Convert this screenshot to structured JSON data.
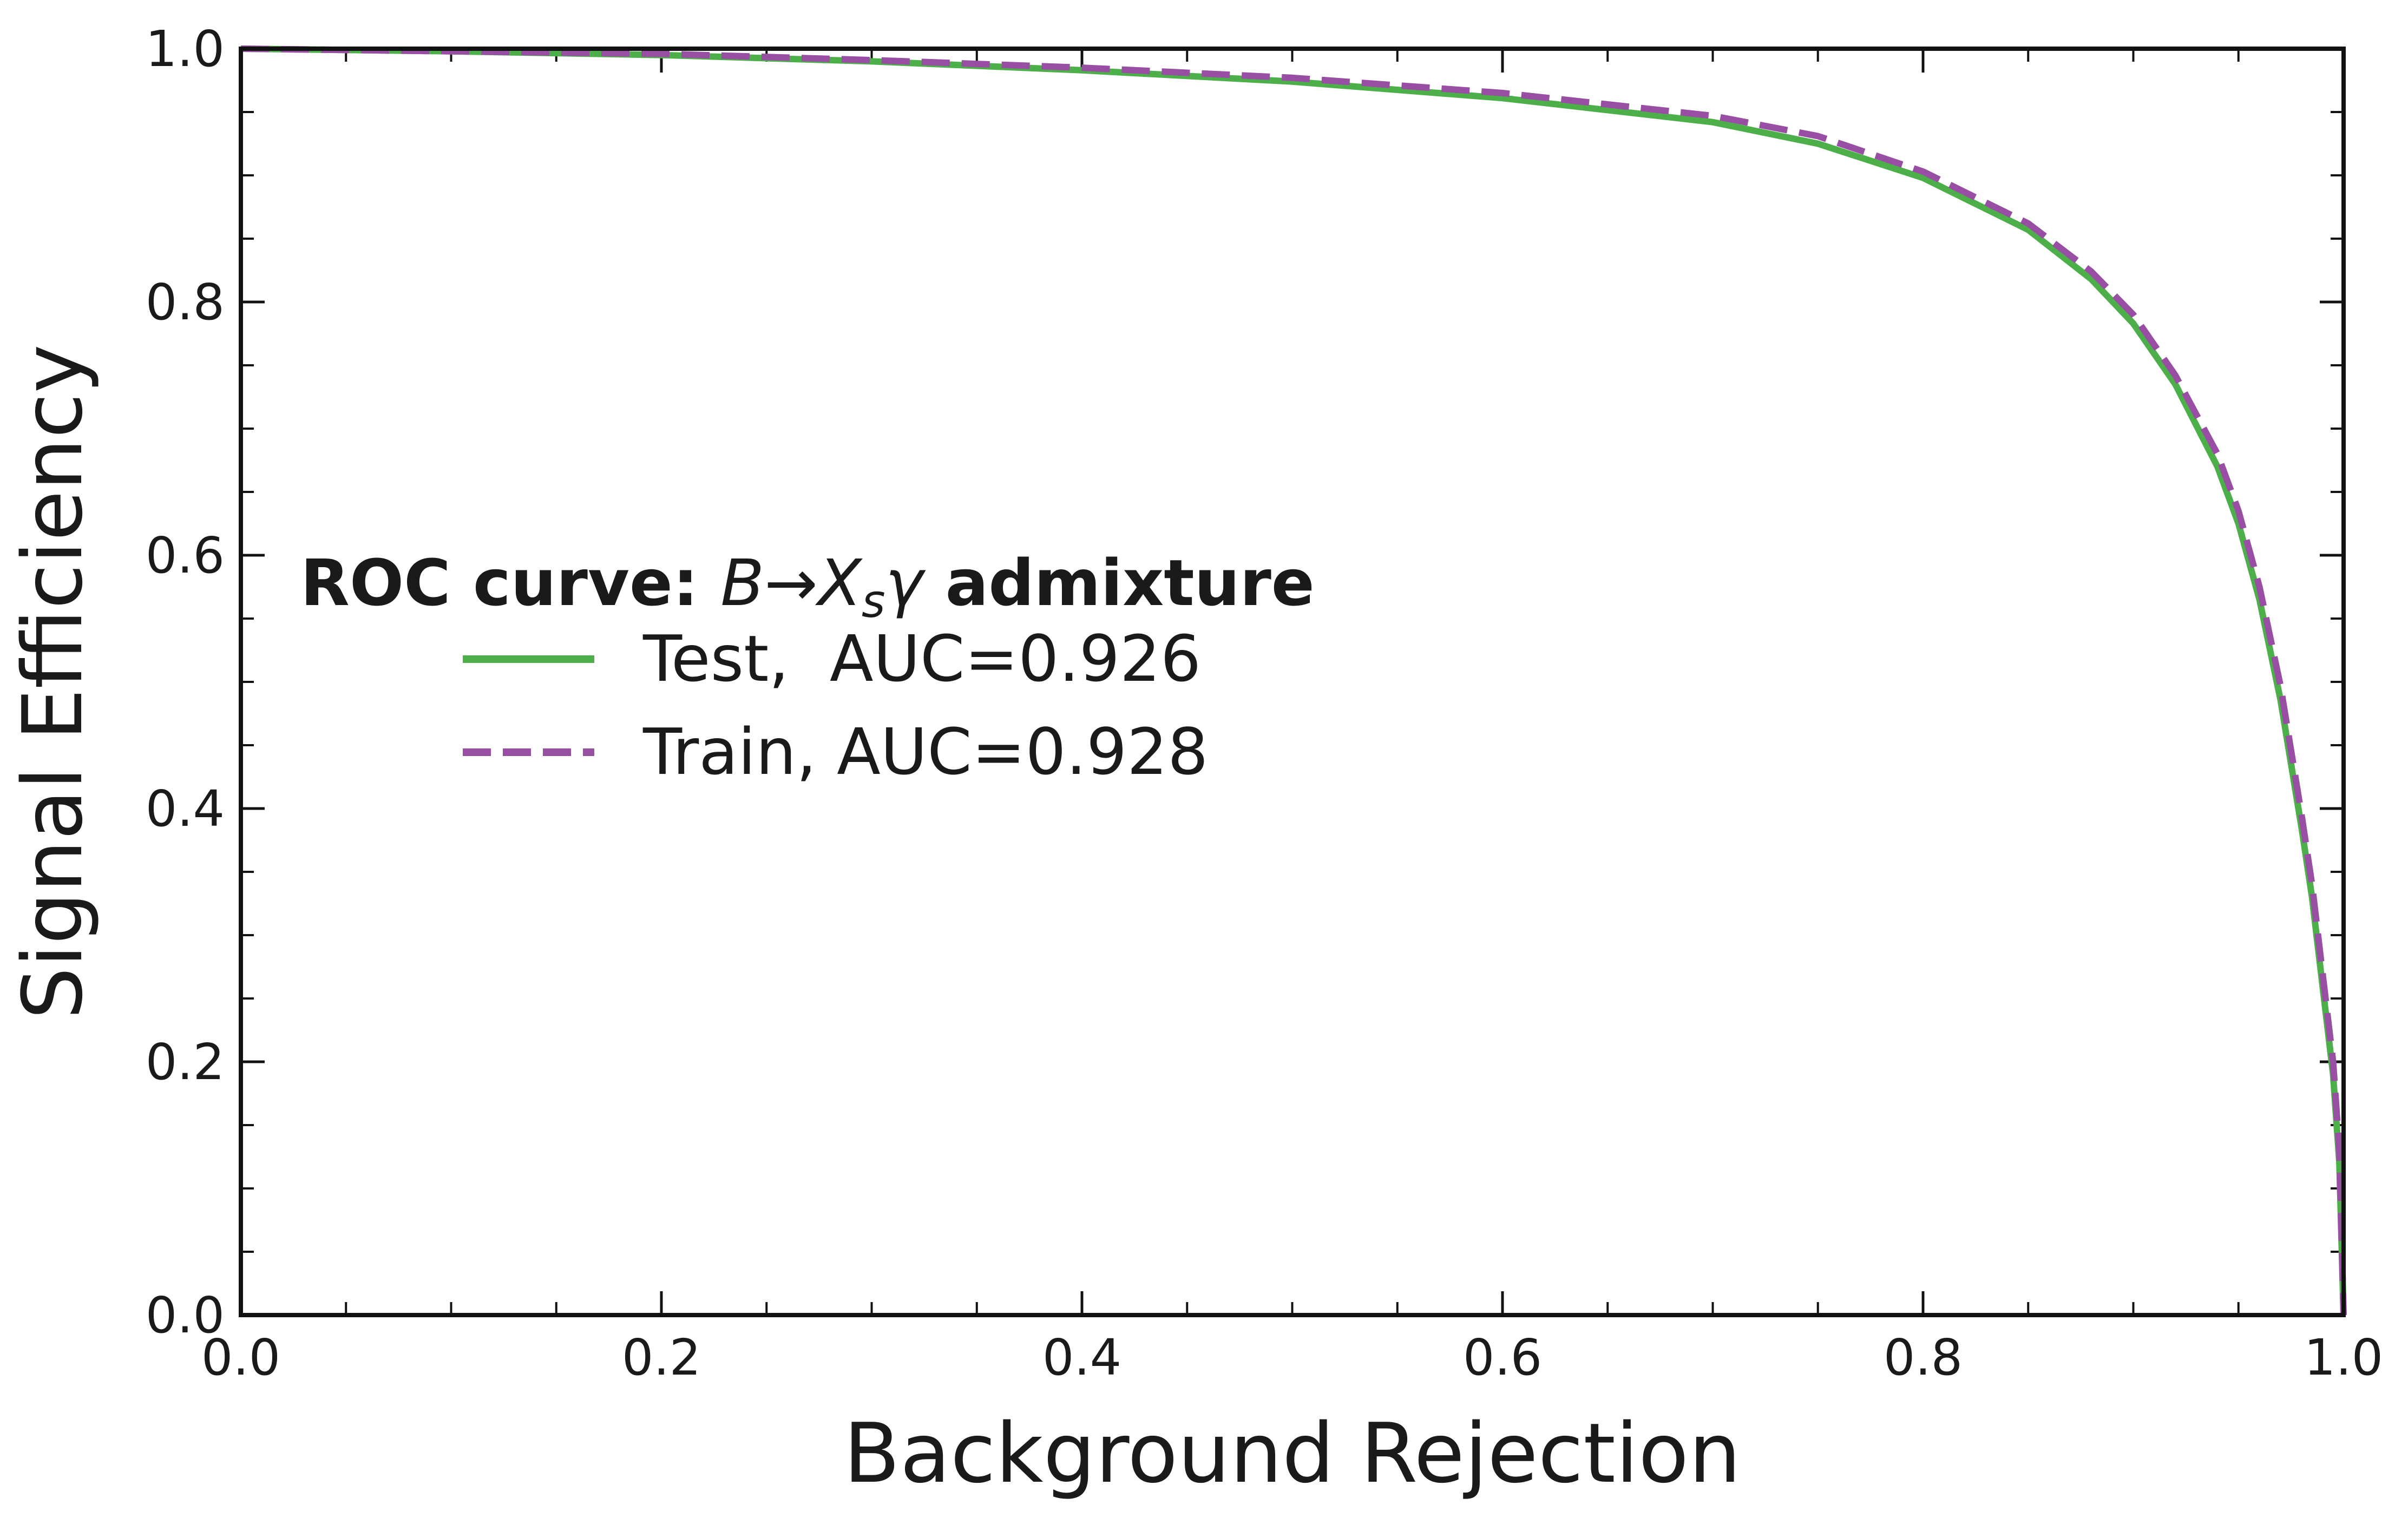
{
  "chart_data": {
    "type": "line",
    "xlabel": "Background Rejection",
    "ylabel": "Signal Efficiency",
    "xlim": [
      0.0,
      1.0
    ],
    "ylim": [
      0.0,
      1.0
    ],
    "xticks": [
      "0.0",
      "0.2",
      "0.4",
      "0.6",
      "0.8",
      "1.0"
    ],
    "yticks": [
      "0.0",
      "0.2",
      "0.4",
      "0.6",
      "0.8",
      "1.0"
    ],
    "grid": false,
    "legend_position": "center-left",
    "legend": {
      "title_bold_prefix": "ROC curve: ",
      "title_math": {
        "B": "B",
        "arrow": "→",
        "X": "X",
        "sub": "s",
        "gamma": "γ"
      },
      "title_bold_suffix": " admixture"
    },
    "series": [
      {
        "name": "Test,  AUC=0.926",
        "color": "#4daf4a",
        "style": "solid",
        "x": [
          0.0,
          0.1,
          0.2,
          0.3,
          0.4,
          0.5,
          0.6,
          0.7,
          0.75,
          0.8,
          0.85,
          0.88,
          0.9,
          0.92,
          0.94,
          0.95,
          0.96,
          0.97,
          0.98,
          0.985,
          0.99,
          0.995,
          0.998,
          1.0
        ],
        "y": [
          1.0,
          0.998,
          0.995,
          0.99,
          0.983,
          0.974,
          0.961,
          0.942,
          0.925,
          0.898,
          0.857,
          0.818,
          0.783,
          0.735,
          0.67,
          0.625,
          0.565,
          0.486,
          0.385,
          0.33,
          0.26,
          0.19,
          0.12,
          0.0
        ]
      },
      {
        "name": "Train, AUC=0.928",
        "color": "#984ea3",
        "style": "dashed",
        "x": [
          0.0,
          0.1,
          0.2,
          0.3,
          0.4,
          0.5,
          0.6,
          0.7,
          0.75,
          0.8,
          0.85,
          0.88,
          0.9,
          0.92,
          0.94,
          0.95,
          0.96,
          0.97,
          0.98,
          0.985,
          0.99,
          0.995,
          0.998,
          1.0
        ],
        "y": [
          1.0,
          0.998,
          0.996,
          0.991,
          0.985,
          0.977,
          0.965,
          0.947,
          0.931,
          0.903,
          0.862,
          0.824,
          0.79,
          0.742,
          0.68,
          0.635,
          0.575,
          0.497,
          0.395,
          0.34,
          0.27,
          0.2,
          0.13,
          0.0
        ]
      }
    ]
  }
}
